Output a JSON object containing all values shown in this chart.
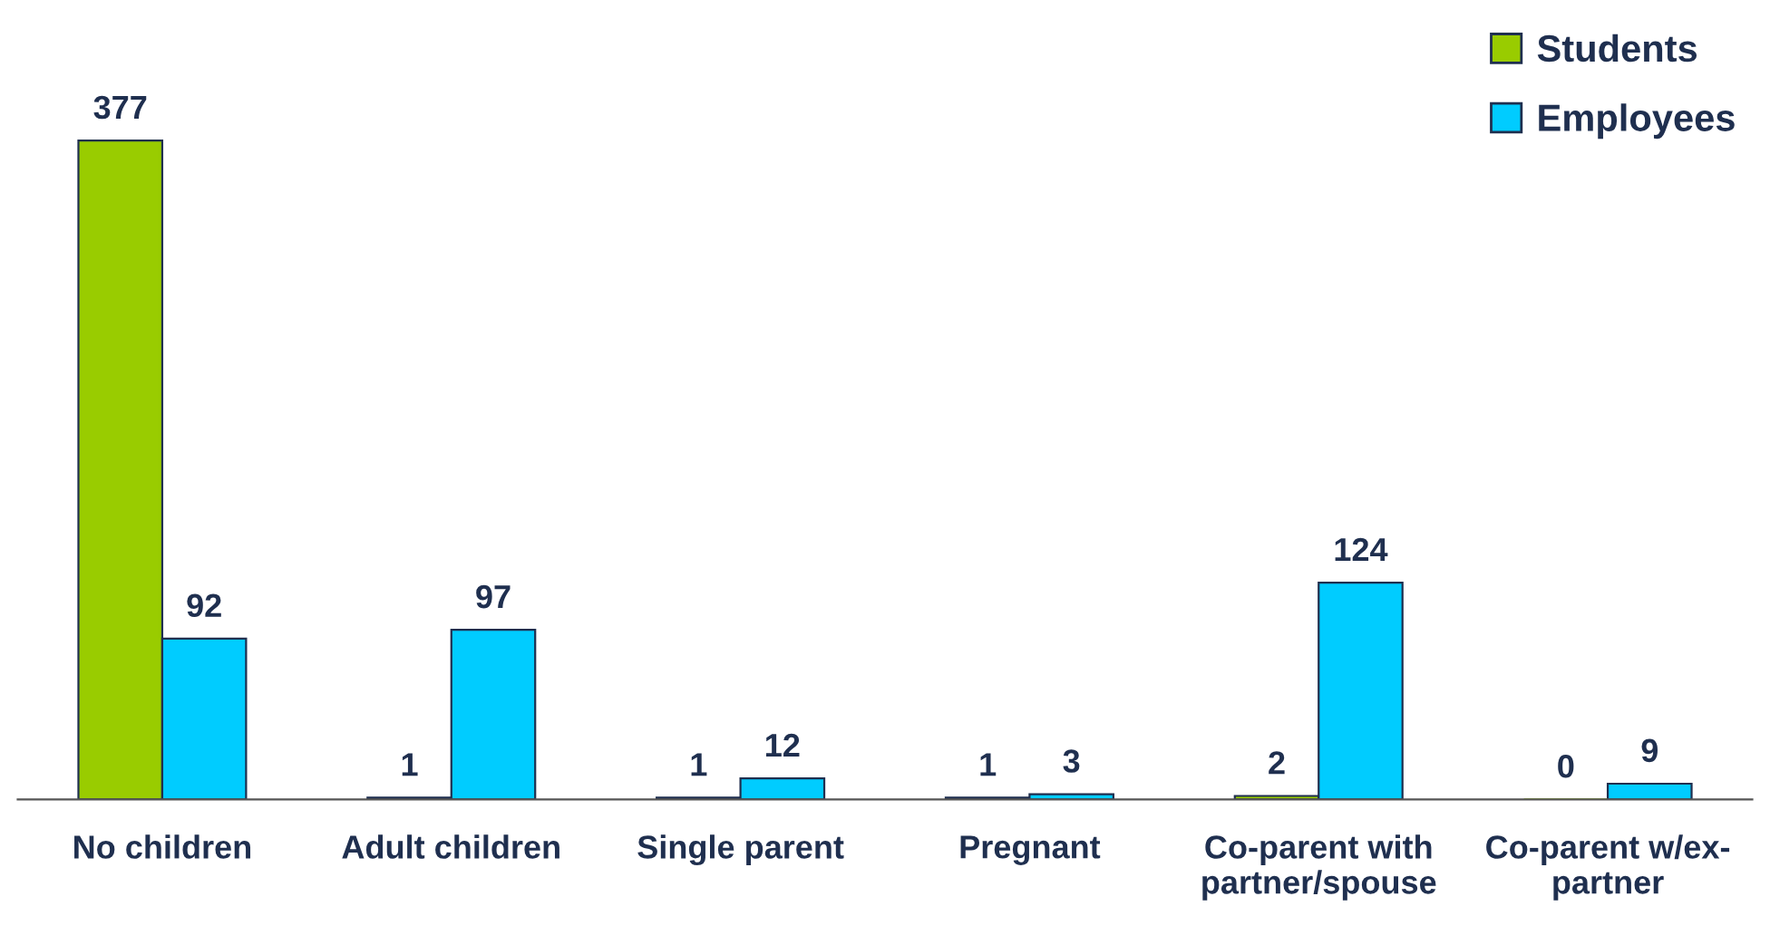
{
  "chart_data": {
    "type": "bar",
    "categories": [
      "No children",
      "Adult children",
      "Single parent",
      "Pregnant",
      "Co-parent with\npartner/spouse",
      "Co-parent w/ex-\npartner"
    ],
    "series": [
      {
        "name": "Students",
        "color": "#99cc00",
        "values": [
          377,
          1,
          1,
          1,
          2,
          0
        ]
      },
      {
        "name": "Employees",
        "color": "#00ccff",
        "values": [
          92,
          97,
          12,
          3,
          124,
          9
        ]
      }
    ],
    "data_labels": true,
    "legend": "top right",
    "grid": false
  }
}
